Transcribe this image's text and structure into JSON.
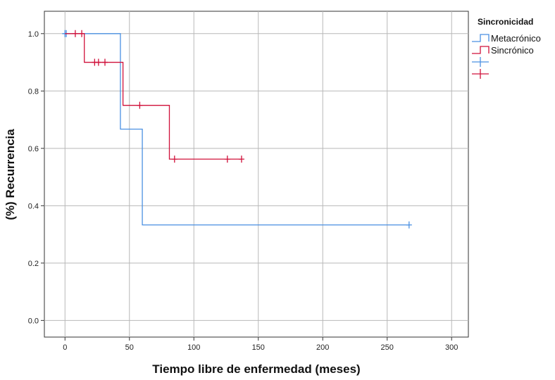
{
  "chart_data": {
    "type": "line",
    "title": "",
    "xlabel": "Tiempo libre de enfermedad (meses)",
    "ylabel": "(%) Recurrencia",
    "xlim": [
      -16,
      313
    ],
    "ylim": [
      -0.058,
      1.078
    ],
    "x_ticks": [
      "0",
      "50",
      "100",
      "150",
      "200",
      "250",
      "300"
    ],
    "y_ticks": [
      "0.0",
      "0.2",
      "0.4",
      "0.6",
      "0.8",
      "1.0"
    ],
    "grid": true,
    "legend": {
      "title": "Sincronicidad",
      "placement": "right",
      "entries": [
        "Metacrónico",
        "Sincrónico",
        "",
        ""
      ]
    },
    "series": [
      {
        "name": "Metacrónico",
        "color": "#4a90e2",
        "steps": [
          [
            0,
            1.0
          ],
          [
            43,
            0.667
          ],
          [
            60,
            0.333
          ],
          [
            267,
            0.333
          ]
        ],
        "censored": [
          [
            0,
            1.0
          ],
          [
            1,
            1.0
          ],
          [
            267,
            0.333
          ]
        ]
      },
      {
        "name": "Sincrónico",
        "color": "#d0103a",
        "steps": [
          [
            0,
            1.0
          ],
          [
            15,
            0.9
          ],
          [
            45,
            0.75
          ],
          [
            81,
            0.5625
          ],
          [
            137,
            0.5625
          ]
        ],
        "censored": [
          [
            8,
            1.0
          ],
          [
            13,
            1.0
          ],
          [
            23,
            0.9
          ],
          [
            26,
            0.9
          ],
          [
            31,
            0.9
          ],
          [
            58,
            0.75
          ],
          [
            85,
            0.5625
          ],
          [
            126,
            0.5625
          ],
          [
            137,
            0.5625
          ]
        ]
      }
    ]
  }
}
